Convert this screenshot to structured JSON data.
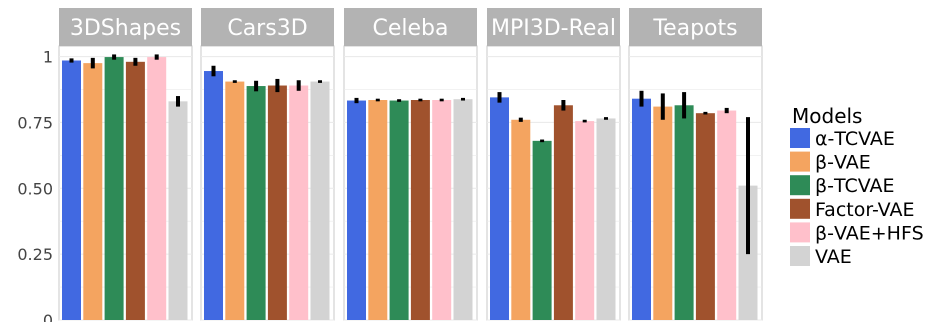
{
  "chart_data": {
    "type": "bar",
    "facets": [
      "3DShapes",
      "Cars3D",
      "Celeba",
      "MPI3D-Real",
      "Teapots"
    ],
    "legend_title": "Models",
    "legend_position": "right",
    "ylim": [
      0,
      1.04
    ],
    "y_ticks": [
      {
        "value": 0,
        "label": "0"
      },
      {
        "value": 0.25,
        "label": "0.25"
      },
      {
        "value": 0.5,
        "label": "0.50"
      },
      {
        "value": 0.75,
        "label": "0.75"
      },
      {
        "value": 1,
        "label": "1"
      }
    ],
    "grid": true,
    "series": [
      {
        "name": "α-TCVAE",
        "color": "#4169e1",
        "values": [
          0.985,
          0.945,
          0.833,
          0.845,
          0.84
        ],
        "errors": [
          0.008,
          0.02,
          0.01,
          0.02,
          0.03
        ]
      },
      {
        "name": "β-VAE",
        "color": "#f4a460",
        "values": [
          0.975,
          0.905,
          0.835,
          0.76,
          0.81
        ],
        "errors": [
          0.02,
          0.005,
          0.005,
          0.008,
          0.05
        ]
      },
      {
        "name": "β-TCVAE",
        "color": "#2e8b57",
        "values": [
          0.998,
          0.888,
          0.833,
          0.68,
          0.815
        ],
        "errors": [
          0.01,
          0.02,
          0.005,
          0.005,
          0.05
        ]
      },
      {
        "name": "Factor-VAE",
        "color": "#a0522d",
        "values": [
          0.98,
          0.89,
          0.835,
          0.815,
          0.785
        ],
        "errors": [
          0.015,
          0.025,
          0.005,
          0.02,
          0.005
        ]
      },
      {
        "name": "β-VAE+HFS",
        "color": "#ffc0cb",
        "values": [
          0.998,
          0.89,
          0.835,
          0.755,
          0.795
        ],
        "errors": [
          0.01,
          0.02,
          0.005,
          0.005,
          0.01
        ]
      },
      {
        "name": "VAE",
        "color": "#d3d3d3",
        "values": [
          0.83,
          0.905,
          0.838,
          0.765,
          0.51
        ],
        "errors": [
          0.02,
          0.005,
          0.005,
          0.005,
          0.26
        ]
      }
    ]
  }
}
